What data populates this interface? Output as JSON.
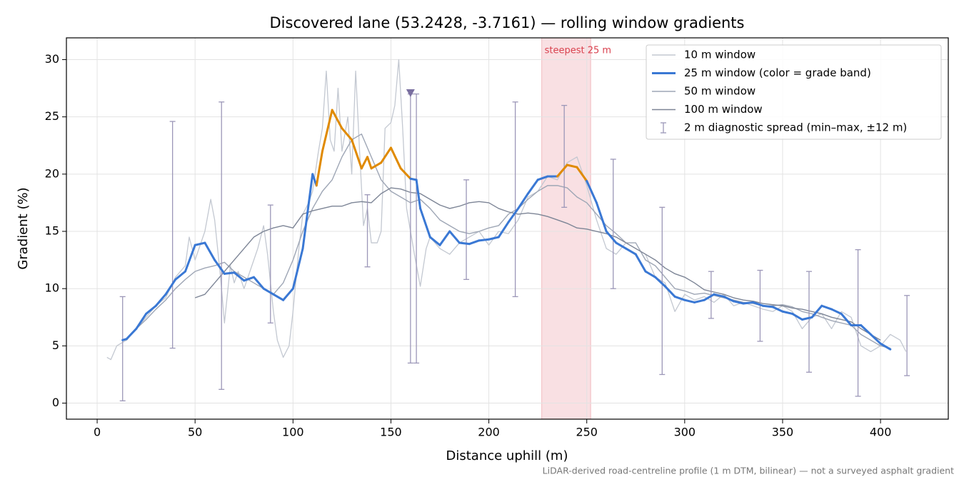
{
  "chart_data": {
    "type": "line",
    "title": "Discovered lane (53.2428, -3.7161) — rolling window gradients",
    "xlabel": "Distance uphill (m)",
    "ylabel": "Gradient (%)",
    "note": "LiDAR-derived road-centreline profile (1 m DTM, bilinear) — not a surveyed asphalt gradient",
    "xlim": [
      -15.7,
      434.6
    ],
    "ylim": [
      -1.4,
      31.9
    ],
    "xticks": [
      0,
      50,
      100,
      150,
      200,
      250,
      300,
      350,
      400
    ],
    "yticks": [
      0,
      5,
      10,
      15,
      20,
      25,
      30
    ],
    "grid": true,
    "legend": "upper right",
    "highlight": {
      "xlim": [
        227,
        252
      ],
      "label": "steepest 25 m",
      "color": "#d9414e"
    },
    "marker": {
      "x": 160,
      "y": 27.1,
      "color": "#7a6fa0"
    },
    "series": [
      {
        "name": "10 m window",
        "color": "#c3c8d1",
        "x": [
          5,
          7,
          10,
          15,
          20,
          25,
          30,
          35,
          40,
          45,
          47,
          50,
          55,
          58,
          60,
          63,
          65,
          68,
          70,
          72,
          75,
          78,
          82,
          85,
          87,
          90,
          92,
          95,
          98,
          100,
          103,
          105,
          108,
          110,
          113,
          115,
          117,
          119,
          121,
          123,
          125,
          128,
          130,
          132,
          134,
          136,
          138,
          140,
          143,
          145,
          147,
          150,
          152,
          154,
          156,
          158,
          160,
          162,
          165,
          168,
          170,
          175,
          180,
          185,
          190,
          195,
          200,
          205,
          210,
          215,
          220,
          225,
          230,
          235,
          240,
          245,
          250,
          255,
          260,
          265,
          270,
          275,
          280,
          285,
          290,
          295,
          300,
          305,
          310,
          315,
          320,
          325,
          330,
          335,
          340,
          345,
          350,
          355,
          360,
          365,
          370,
          375,
          380,
          385,
          390,
          395,
          400,
          405,
          410,
          413
        ],
        "values": [
          4.0,
          3.8,
          5.0,
          5.5,
          6.5,
          7.5,
          8.5,
          9.2,
          11.0,
          12.0,
          14.5,
          12.5,
          15.0,
          17.8,
          16.0,
          11.0,
          7.0,
          12.0,
          10.5,
          11.5,
          10.0,
          11.5,
          13.5,
          15.5,
          13.0,
          8.0,
          5.5,
          4.0,
          5.0,
          8.0,
          13.5,
          16.5,
          17.5,
          18.5,
          22.0,
          24.0,
          29.0,
          23.0,
          22.0,
          27.5,
          22.0,
          25.0,
          20.0,
          29.0,
          22.0,
          15.5,
          17.0,
          14.0,
          14.0,
          15.0,
          24.0,
          24.5,
          26.0,
          30.0,
          24.0,
          17.0,
          15.0,
          13.0,
          10.2,
          13.5,
          14.5,
          13.5,
          13.0,
          14.0,
          14.5,
          15.0,
          13.8,
          15.0,
          14.8,
          16.0,
          18.0,
          18.5,
          19.8,
          19.5,
          21.0,
          21.5,
          19.0,
          16.0,
          13.5,
          13.0,
          14.0,
          13.5,
          13.0,
          11.0,
          10.5,
          8.0,
          9.5,
          9.0,
          9.3,
          8.8,
          9.5,
          8.5,
          8.8,
          8.5,
          8.2,
          8.0,
          8.5,
          8.0,
          6.5,
          7.5,
          7.8,
          6.5,
          8.0,
          7.5,
          5.0,
          4.5,
          5.0,
          6.0,
          5.5,
          4.5
        ]
      },
      {
        "name": "50 m window",
        "color": "#9ea6b5",
        "x": [
          15,
          20,
          25,
          30,
          35,
          40,
          45,
          50,
          55,
          60,
          65,
          70,
          75,
          80,
          85,
          90,
          95,
          100,
          105,
          110,
          115,
          120,
          125,
          130,
          135,
          140,
          145,
          150,
          155,
          160,
          165,
          170,
          175,
          180,
          185,
          190,
          195,
          200,
          205,
          210,
          215,
          220,
          225,
          230,
          235,
          240,
          245,
          250,
          255,
          260,
          265,
          270,
          275,
          280,
          285,
          290,
          295,
          300,
          305,
          310,
          315,
          320,
          325,
          330,
          335,
          340,
          345,
          350,
          355,
          360,
          365,
          370,
          375,
          380,
          385,
          390,
          395,
          400,
          405
        ],
        "values": [
          5.5,
          6.5,
          7.3,
          8.2,
          9.0,
          10.0,
          10.8,
          11.5,
          11.8,
          12.0,
          12.3,
          11.5,
          11.0,
          10.5,
          10.0,
          9.5,
          10.5,
          12.5,
          15.0,
          17.0,
          18.5,
          19.5,
          21.5,
          23.0,
          23.5,
          21.5,
          19.5,
          18.5,
          18.0,
          17.5,
          17.8,
          17.0,
          16.0,
          15.5,
          15.0,
          14.8,
          15.0,
          15.3,
          15.5,
          16.5,
          17.0,
          17.8,
          18.5,
          19.0,
          19.0,
          18.8,
          18.0,
          17.5,
          16.5,
          15.5,
          14.8,
          14.0,
          14.0,
          12.5,
          12.0,
          11.0,
          10.0,
          9.8,
          9.5,
          9.6,
          9.4,
          9.2,
          9.0,
          8.8,
          8.7,
          8.5,
          8.5,
          8.6,
          8.4,
          8.0,
          7.8,
          7.5,
          7.2,
          7.0,
          6.8,
          6.0,
          5.5,
          5.0,
          4.8
        ]
      },
      {
        "name": "100 m window",
        "color": "#7d8596",
        "x": [
          50,
          55,
          60,
          65,
          70,
          75,
          80,
          85,
          90,
          95,
          100,
          105,
          110,
          115,
          120,
          125,
          130,
          135,
          140,
          145,
          150,
          155,
          160,
          165,
          170,
          175,
          180,
          185,
          190,
          195,
          200,
          205,
          210,
          215,
          220,
          225,
          230,
          235,
          240,
          245,
          250,
          255,
          260,
          265,
          270,
          275,
          280,
          285,
          290,
          295,
          300,
          305,
          310,
          315,
          320,
          325,
          330,
          335,
          340,
          345,
          350,
          355,
          360,
          365,
          370,
          375,
          380,
          385,
          390,
          395,
          400
        ],
        "values": [
          9.2,
          9.5,
          10.5,
          11.5,
          12.5,
          13.5,
          14.5,
          15.0,
          15.3,
          15.5,
          15.3,
          16.5,
          16.8,
          17.0,
          17.2,
          17.2,
          17.5,
          17.6,
          17.5,
          18.3,
          18.8,
          18.7,
          18.4,
          18.3,
          17.8,
          17.3,
          17.0,
          17.2,
          17.5,
          17.6,
          17.5,
          17.0,
          16.7,
          16.5,
          16.6,
          16.5,
          16.3,
          16.0,
          15.7,
          15.3,
          15.2,
          15.0,
          14.8,
          14.5,
          14.0,
          13.5,
          13.0,
          12.5,
          11.8,
          11.3,
          11.0,
          10.5,
          9.9,
          9.7,
          9.5,
          9.2,
          9.0,
          8.9,
          8.7,
          8.6,
          8.5,
          8.3,
          8.2,
          8.0,
          7.8,
          7.5,
          7.3,
          7.1,
          6.5,
          6.0,
          5.5
        ]
      },
      {
        "name": "25 m window (color = grade band)",
        "color": "#3a78d4",
        "color_bands": [
          {
            "below": 20,
            "color": "#3a78d4"
          },
          {
            "below": 25,
            "color": "#e08a00"
          },
          {
            "color": "#c8202b"
          }
        ],
        "x": [
          13,
          15,
          20,
          25,
          30,
          35,
          40,
          45,
          50,
          55,
          60,
          65,
          70,
          75,
          80,
          85,
          90,
          95,
          100,
          105,
          110,
          112,
          115,
          120,
          125,
          130,
          135,
          138,
          140,
          145,
          150,
          155,
          160,
          163,
          165,
          170,
          175,
          180,
          185,
          190,
          195,
          200,
          205,
          210,
          215,
          220,
          225,
          230,
          235,
          240,
          245,
          250,
          255,
          260,
          265,
          270,
          275,
          280,
          285,
          290,
          295,
          300,
          305,
          310,
          315,
          320,
          325,
          330,
          335,
          340,
          345,
          350,
          355,
          360,
          365,
          370,
          375,
          380,
          385,
          390,
          395,
          400,
          405
        ],
        "values": [
          5.5,
          5.6,
          6.5,
          7.8,
          8.5,
          9.5,
          10.8,
          11.5,
          13.8,
          14.0,
          12.5,
          11.3,
          11.4,
          10.7,
          11.0,
          10.0,
          9.5,
          9.0,
          10.0,
          13.5,
          20.0,
          19.0,
          22.0,
          25.6,
          24.0,
          23.0,
          20.5,
          21.5,
          20.5,
          21.0,
          22.3,
          20.5,
          19.6,
          19.5,
          17.0,
          14.5,
          13.8,
          15.0,
          14.0,
          13.9,
          14.2,
          14.3,
          14.5,
          15.8,
          17.0,
          18.3,
          19.5,
          19.8,
          19.8,
          20.8,
          20.6,
          19.4,
          17.5,
          15.0,
          14.0,
          13.5,
          13.0,
          11.5,
          11.0,
          10.2,
          9.3,
          9.0,
          8.8,
          9.0,
          9.5,
          9.3,
          8.9,
          8.7,
          8.8,
          8.5,
          8.4,
          8.0,
          7.8,
          7.3,
          7.5,
          8.5,
          8.2,
          7.8,
          6.8,
          6.8,
          6.0,
          5.2,
          4.7
        ]
      }
    ],
    "error_bars": {
      "name": "2 m diagnostic spread (min–max, ±12 m)",
      "color": "#9c97b8",
      "x": [
        13,
        38.5,
        63.5,
        88.5,
        138,
        160,
        163,
        188.5,
        213.5,
        238.5,
        263.5,
        288.5,
        313.5,
        338.5,
        363.5,
        388.5,
        413.5
      ],
      "min": [
        0.2,
        4.8,
        1.2,
        7.0,
        11.9,
        3.5,
        3.5,
        10.8,
        9.3,
        17.1,
        10.0,
        2.5,
        7.4,
        5.4,
        2.7,
        0.6,
        2.4
      ],
      "max": [
        9.3,
        24.6,
        26.3,
        17.3,
        18.2,
        27.0,
        27.0,
        19.5,
        26.3,
        26.0,
        21.3,
        17.1,
        11.5,
        11.6,
        11.5,
        13.4,
        9.4
      ]
    }
  }
}
